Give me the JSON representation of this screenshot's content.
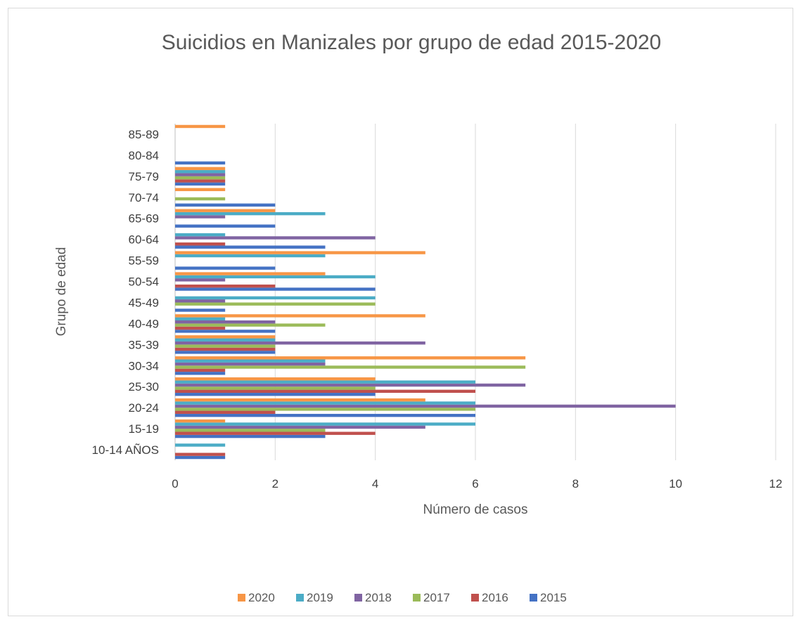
{
  "chart_data": {
    "type": "bar",
    "orientation": "horizontal",
    "title": "Suicidios en Manizales por grupo de edad 2015-2020",
    "xlabel": "Número de casos",
    "ylabel": "Grupo de edad",
    "xlim": [
      0,
      12
    ],
    "xticks": [
      "0",
      "2",
      "4",
      "6",
      "8",
      "10",
      "12"
    ],
    "grid": true,
    "legend_position": "bottom",
    "categories": [
      "10-14 AÑOS",
      "15-19",
      "20-24",
      "25-30",
      "30-34",
      "35-39",
      "40-49",
      "45-49",
      "50-54",
      "55-59",
      "60-64",
      "65-69",
      "70-74",
      "75-79",
      "80-84",
      "85-89"
    ],
    "series": [
      {
        "name": "2015",
        "color": "#4472c4",
        "values": [
          1,
          3,
          6,
          4,
          1,
          2,
          2,
          1,
          4,
          2,
          3,
          2,
          2,
          1,
          1,
          0
        ]
      },
      {
        "name": "2016",
        "color": "#c0504d",
        "values": [
          1,
          4,
          2,
          6,
          1,
          2,
          1,
          0,
          2,
          0,
          1,
          0,
          0,
          1,
          0,
          0
        ]
      },
      {
        "name": "2017",
        "color": "#9bbb59",
        "values": [
          0,
          3,
          6,
          4,
          7,
          2,
          3,
          4,
          0,
          0,
          0,
          0,
          1,
          1,
          0,
          0
        ]
      },
      {
        "name": "2018",
        "color": "#8064a2",
        "values": [
          0,
          5,
          10,
          7,
          3,
          5,
          2,
          1,
          1,
          0,
          4,
          1,
          0,
          1,
          0,
          0
        ]
      },
      {
        "name": "2019",
        "color": "#4bacc6",
        "values": [
          1,
          6,
          6,
          6,
          3,
          2,
          1,
          4,
          4,
          3,
          1,
          3,
          0,
          1,
          0,
          0
        ]
      },
      {
        "name": "2020",
        "color": "#f79646",
        "values": [
          0,
          1,
          5,
          4,
          7,
          2,
          5,
          0,
          3,
          5,
          0,
          2,
          1,
          1,
          0,
          1
        ]
      }
    ],
    "legend_order": [
      "2020",
      "2019",
      "2018",
      "2017",
      "2016",
      "2015"
    ]
  }
}
